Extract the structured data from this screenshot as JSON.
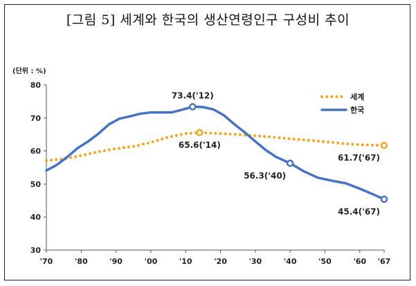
{
  "title": "[그림 5] 세계와 한국의 생산연령인구 구성비 추이",
  "chart_data": {
    "type": "line",
    "unit_label": "(단위 : %)",
    "ylim": [
      30,
      80
    ],
    "y_ticks": [
      "30",
      "40",
      "50",
      "60",
      "70",
      "80"
    ],
    "x_tick_labels": [
      "'70",
      "'80",
      "'90",
      "'00",
      "'10",
      "'20",
      "'30",
      "'40",
      "'50",
      "'60",
      "'67"
    ],
    "x_tick_years": [
      1970,
      1980,
      1990,
      2000,
      2010,
      2020,
      2030,
      2040,
      2050,
      2060,
      2067
    ],
    "legend_position": "top-right",
    "series": [
      {
        "name": "세계",
        "color": "#f5a623",
        "style": "dotted",
        "x": [
          1970,
          1975,
          1980,
          1985,
          1990,
          1995,
          2000,
          2005,
          2010,
          2014,
          2020,
          2025,
          2030,
          2035,
          2040,
          2045,
          2050,
          2055,
          2060,
          2067
        ],
        "y": [
          57.1,
          57.6,
          58.6,
          59.8,
          60.7,
          61.4,
          62.6,
          64.2,
          65.3,
          65.6,
          65.3,
          65.0,
          64.6,
          64.2,
          63.7,
          63.3,
          62.8,
          62.3,
          61.9,
          61.7
        ]
      },
      {
        "name": "한국",
        "color": "#4472c4",
        "style": "solid",
        "x": [
          1970,
          1973,
          1976,
          1979,
          1982,
          1985,
          1988,
          1991,
          1994,
          1997,
          2000,
          2003,
          2006,
          2009,
          2012,
          2015,
          2018,
          2021,
          2024,
          2027,
          2030,
          2033,
          2036,
          2040,
          2044,
          2048,
          2052,
          2056,
          2060,
          2064,
          2067
        ],
        "y": [
          54.1,
          55.8,
          58.2,
          60.9,
          62.9,
          65.3,
          68.1,
          69.8,
          70.5,
          71.3,
          71.7,
          71.7,
          71.7,
          72.5,
          73.4,
          73.3,
          72.6,
          70.8,
          68.1,
          65.6,
          62.9,
          60.3,
          58.2,
          56.3,
          53.8,
          51.9,
          51.0,
          50.2,
          48.6,
          46.8,
          45.4
        ]
      }
    ],
    "annotations": [
      {
        "series": "한국",
        "x": 2012,
        "y": 73.4,
        "label": "73.4('12)",
        "placement": "above"
      },
      {
        "series": "세계",
        "x": 2014,
        "y": 65.6,
        "label": "65.6('14)",
        "placement": "below"
      },
      {
        "series": "한국",
        "x": 2040,
        "y": 56.3,
        "label": "56.3('40)",
        "placement": "below-left"
      },
      {
        "series": "세계",
        "x": 2067,
        "y": 61.7,
        "label": "61.7('67)",
        "placement": "below-left"
      },
      {
        "series": "한국",
        "x": 2067,
        "y": 45.4,
        "label": "45.4('67)",
        "placement": "below-left"
      }
    ]
  }
}
